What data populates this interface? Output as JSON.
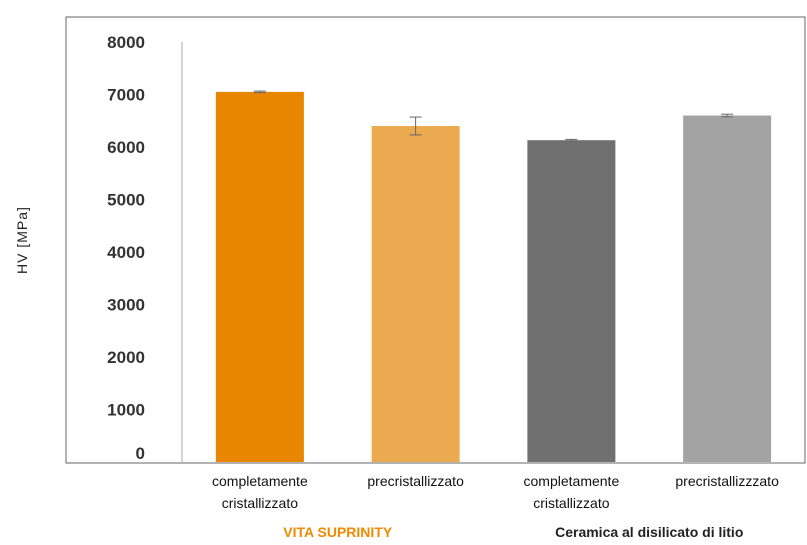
{
  "chart_data": {
    "type": "bar",
    "ylabel": "HV [MPa]",
    "ylim": [
      0,
      8000
    ],
    "yticks": [
      0,
      1000,
      2000,
      3000,
      4000,
      5000,
      6000,
      7000,
      8000
    ],
    "grid": false,
    "bars": [
      {
        "label": [
          "completamente",
          "cristallizzato"
        ],
        "value": 7050,
        "error": 15,
        "color": "#e88600"
      },
      {
        "label": [
          "precristallizzato"
        ],
        "value": 6400,
        "error": 170,
        "color": "#ecaa50"
      },
      {
        "label": [
          "completamente",
          "cristallizzato"
        ],
        "value": 6130,
        "error": 15,
        "color": "#707070"
      },
      {
        "label": [
          "precristallizzzato"
        ],
        "value": 6600,
        "error": 25,
        "color": "#a3a3a3"
      }
    ],
    "groups": [
      {
        "name": "VITA SUPRINITY",
        "color": "#f08a00"
      },
      {
        "name": "Ceramica al disilicato di litio",
        "color": "#222222"
      }
    ]
  }
}
